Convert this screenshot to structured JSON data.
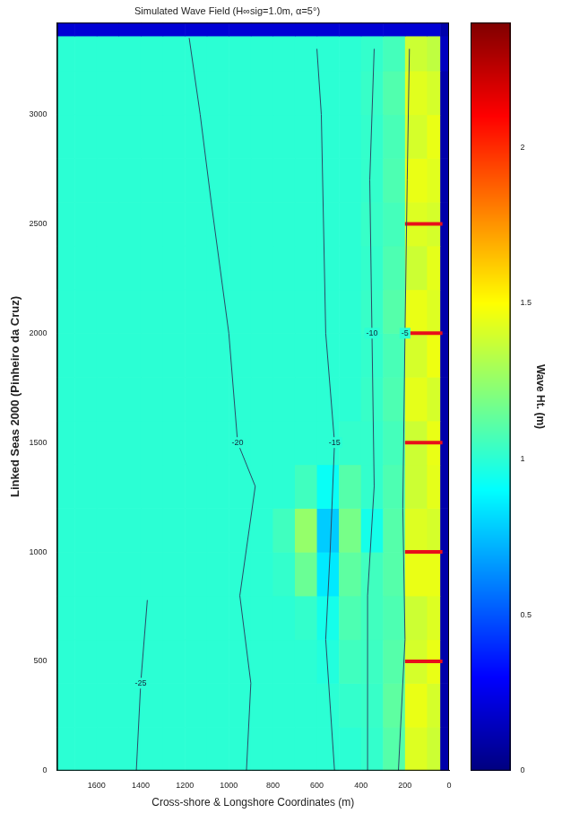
{
  "chart_data": {
    "type": "heatmap",
    "title": "Simulated Wave Field (H∞sig=1.0m, α=5°)",
    "x_label": "Cross-shore & Longshore Coordinates (m)",
    "y_label": "Linked Seas 2000 (Pinheiro da Cruz)",
    "xlim": [
      1780,
      0
    ],
    "xticks": [
      1600,
      1400,
      1200,
      1000,
      800,
      600,
      400,
      200,
      0
    ],
    "ylim": [
      0,
      3420
    ],
    "yticks": [
      0,
      500,
      1000,
      1500,
      2000,
      2500,
      3000
    ],
    "grid": false,
    "x_edges": [
      1780,
      1700,
      1600,
      1500,
      1400,
      1300,
      1200,
      1100,
      1000,
      900,
      800,
      700,
      600,
      500,
      400,
      300,
      200,
      100,
      40,
      0
    ],
    "y_edges": [
      0,
      200,
      400,
      600,
      800,
      1000,
      1200,
      1400,
      1600,
      1800,
      2000,
      2200,
      2400,
      2600,
      2800,
      3000,
      3200,
      3360,
      3420
    ],
    "cells": [
      [
        1,
        1,
        1,
        1,
        1,
        1,
        1,
        1,
        1,
        1,
        1,
        1,
        1,
        1,
        1.02,
        1.1,
        1.42,
        1.38,
        0.1
      ],
      [
        1,
        1,
        1,
        1,
        1,
        1,
        1,
        1,
        1,
        1,
        1,
        1,
        1,
        1.02,
        1.03,
        1.12,
        1.45,
        1.4,
        0.1
      ],
      [
        1,
        1,
        1,
        1,
        1,
        1,
        1,
        1,
        1,
        1,
        1,
        1,
        0.98,
        1.05,
        1.04,
        1.1,
        1.4,
        1.45,
        0.1
      ],
      [
        1,
        1,
        1,
        1,
        1,
        1,
        1,
        1,
        1,
        1,
        1,
        1.02,
        0.95,
        1.08,
        1.05,
        1.08,
        1.38,
        1.42,
        0.1
      ],
      [
        1,
        1,
        1,
        1,
        1,
        1,
        1,
        1,
        1,
        1,
        1.02,
        1.15,
        0.85,
        1.12,
        1.05,
        1.1,
        1.45,
        1.45,
        0.1
      ],
      [
        1,
        1,
        1,
        1,
        1,
        1,
        1,
        1,
        1,
        1,
        1.05,
        1.25,
        0.78,
        1.18,
        0.95,
        1.1,
        1.42,
        1.4,
        0.1
      ],
      [
        1,
        1,
        1,
        1,
        1,
        1,
        1,
        1,
        1,
        1,
        1,
        1.05,
        0.92,
        1.1,
        1.02,
        1.08,
        1.38,
        1.44,
        0.1
      ],
      [
        1,
        1,
        1,
        1,
        1,
        1,
        1,
        1,
        1,
        1,
        1,
        1,
        1,
        1.02,
        1.02,
        1.06,
        1.38,
        1.45,
        0.1
      ],
      [
        1,
        1,
        1,
        1,
        1,
        1,
        1,
        1,
        1,
        1,
        1,
        1,
        1,
        1,
        1.03,
        1.08,
        1.44,
        1.4,
        0.1
      ],
      [
        1,
        1,
        1,
        1,
        1,
        1,
        1,
        1,
        1,
        1,
        1,
        1,
        1,
        1,
        1.02,
        1.07,
        1.4,
        1.46,
        0.1
      ],
      [
        1,
        1,
        1,
        1,
        1,
        1,
        1,
        1,
        1,
        1,
        1,
        1,
        1,
        1,
        1.03,
        1.1,
        1.45,
        1.42,
        0.1
      ],
      [
        1,
        1,
        1,
        1,
        1,
        1,
        1,
        1,
        1,
        1,
        1,
        1,
        1,
        1,
        1.02,
        1.08,
        1.38,
        1.44,
        0.1
      ],
      [
        1,
        1,
        1,
        1,
        1,
        1,
        1,
        1,
        1,
        1,
        1,
        1,
        1,
        1,
        1.03,
        1.06,
        1.42,
        1.4,
        0.1
      ],
      [
        1,
        1,
        1,
        1,
        1,
        1,
        1,
        1,
        1,
        1,
        1,
        1,
        1,
        1,
        1.02,
        1.08,
        1.45,
        1.43,
        0.1
      ],
      [
        1,
        1,
        1,
        1,
        1,
        1,
        1,
        1,
        1,
        1,
        1,
        1,
        1,
        1,
        1.02,
        1.07,
        1.4,
        1.45,
        0.1
      ],
      [
        1,
        1,
        1,
        1,
        1,
        1,
        1,
        1,
        1,
        1,
        1,
        1,
        1,
        1,
        1.03,
        1.09,
        1.43,
        1.4,
        0.1
      ],
      [
        1,
        1,
        1,
        1,
        1,
        1,
        1,
        1,
        1,
        1,
        1,
        1,
        1,
        1,
        1.02,
        1.06,
        1.38,
        1.35,
        0.15
      ],
      [
        0.2,
        0.2,
        0.2,
        0.2,
        0.2,
        0.2,
        0.2,
        0.2,
        0.2,
        0.2,
        0.2,
        0.2,
        0.2,
        0.2,
        0.2,
        0.2,
        0.2,
        0.2,
        0.1
      ]
    ],
    "colorbar": {
      "label": "Wave Ht. (m)",
      "range": [
        0,
        2.4
      ],
      "ticks": [
        0,
        0.5,
        1,
        1.5,
        2
      ]
    },
    "contours": [
      {
        "label": "-5",
        "color": "#2b4a66",
        "x": [
          230,
          200,
          210,
          200,
          190,
          180
        ],
        "y": [
          0,
          600,
          1200,
          2000,
          2700,
          3300
        ]
      },
      {
        "label": "-10",
        "color": "#2b4a66",
        "x": [
          370,
          370,
          340,
          350,
          360,
          340
        ],
        "y": [
          0,
          800,
          1300,
          2000,
          2700,
          3300
        ]
      },
      {
        "label": "-15",
        "color": "#2b4a66",
        "x": [
          520,
          560,
          540,
          520,
          560,
          580,
          600
        ],
        "y": [
          0,
          600,
          1000,
          1500,
          2000,
          3000,
          3300
        ]
      },
      {
        "label": "-20",
        "color": "#2b4a66",
        "x": [
          920,
          900,
          950,
          880,
          960,
          1000,
          1080,
          1130,
          1180
        ],
        "y": [
          0,
          400,
          800,
          1300,
          1500,
          2000,
          2600,
          3000,
          3350
        ]
      },
      {
        "label": "-25",
        "color": "#2b4a66",
        "x": [
          1420,
          1400,
          1370
        ],
        "y": [
          0,
          400,
          780
        ]
      }
    ],
    "markers": {
      "color": "#e8101a",
      "x": [
        200,
        30
      ],
      "y": [
        500,
        1000,
        1500,
        2000,
        2500
      ]
    }
  }
}
